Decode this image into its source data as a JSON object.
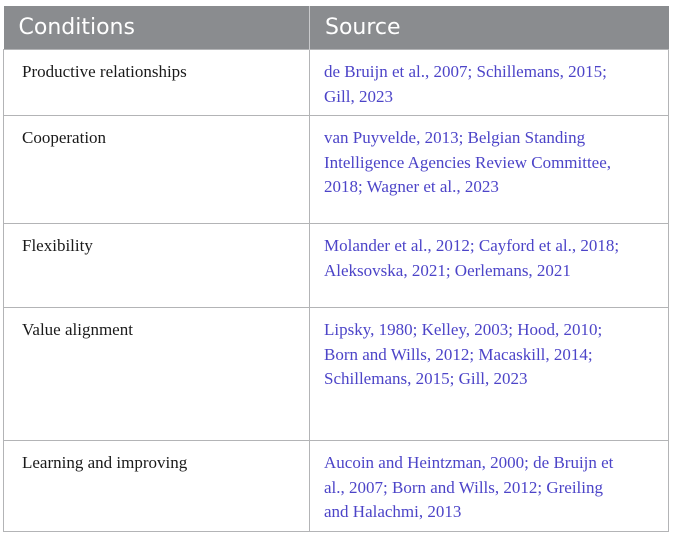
{
  "table": {
    "headers": [
      "Conditions",
      "Source"
    ],
    "rows": [
      {
        "condition": "Productive relationships",
        "source": " de Bruijn et al., 2007; Schillemans, 2015; Gill, 2023"
      },
      {
        "condition": "Cooperation",
        "source": " van Puyvelde, 2013; Belgian Standing Intelligence Agencies Review Committee, 2018; Wagner et al., 2023"
      },
      {
        "condition": "Flexibility",
        "source": " Molander et al., 2012; Cayford et al., 2018; Aleksovska, 2021; Oerlemans, 2021"
      },
      {
        "condition": "Value alignment",
        "source": " Lipsky, 1980; Kelley, 2003; Hood, 2010; Born and Wills, 2012; Macaskill, 2014; Schillemans, 2015; Gill, 2023"
      },
      {
        "condition": "Learning and improving",
        "source": " Aucoin and Heintzman, 2000; de Bruijn et al., 2007; Born and Wills, 2012; Greiling and Halachmi, 2013"
      }
    ]
  },
  "colors": {
    "header_bg": "#8a8c8f",
    "header_text": "#ffffff",
    "citation_link": "#4c44c8",
    "border": "#b3b4b6"
  }
}
